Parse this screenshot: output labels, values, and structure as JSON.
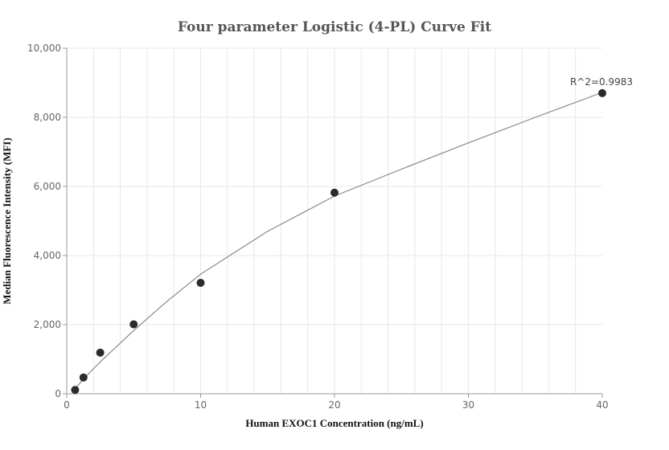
{
  "chart_data": {
    "type": "scatter",
    "title": "Four parameter Logistic (4-PL) Curve Fit",
    "xlabel": "Human EXOC1 Concentration (ng/mL)",
    "ylabel": "Median Fluorescence Intensity (MFI)",
    "xlim": [
      0,
      40
    ],
    "ylim": [
      0,
      10000
    ],
    "x_ticks": [
      0,
      10,
      20,
      30,
      40
    ],
    "x_tick_labels": [
      "0",
      "10",
      "20",
      "30",
      "40"
    ],
    "y_ticks": [
      0,
      2000,
      4000,
      6000,
      8000,
      10000
    ],
    "y_tick_labels": [
      "0",
      "2,000",
      "4,000",
      "6,000",
      "8,000",
      "10,000"
    ],
    "grid": true,
    "series": [
      {
        "kind": "points",
        "x": [
          0.625,
          1.25,
          2.5,
          5,
          10,
          20,
          40
        ],
        "y": [
          110,
          470,
          1190,
          2010,
          3210,
          5820,
          8700
        ]
      },
      {
        "kind": "fitted-curve",
        "x": [
          0.625,
          1.25,
          2.5,
          5,
          7.5,
          10,
          15,
          20,
          25,
          30,
          35,
          40
        ],
        "y": [
          140,
          430,
          920,
          1830,
          2680,
          3460,
          4700,
          5720,
          6500,
          7260,
          8000,
          8720
        ]
      }
    ],
    "annotations": [
      {
        "text": "R^2=0.9983",
        "x": 40,
        "y": 8700
      }
    ],
    "colors": {
      "points": "#2b2b2b",
      "curve": "#888888",
      "grid": "#e6e6f0",
      "axis": "#999999"
    }
  }
}
